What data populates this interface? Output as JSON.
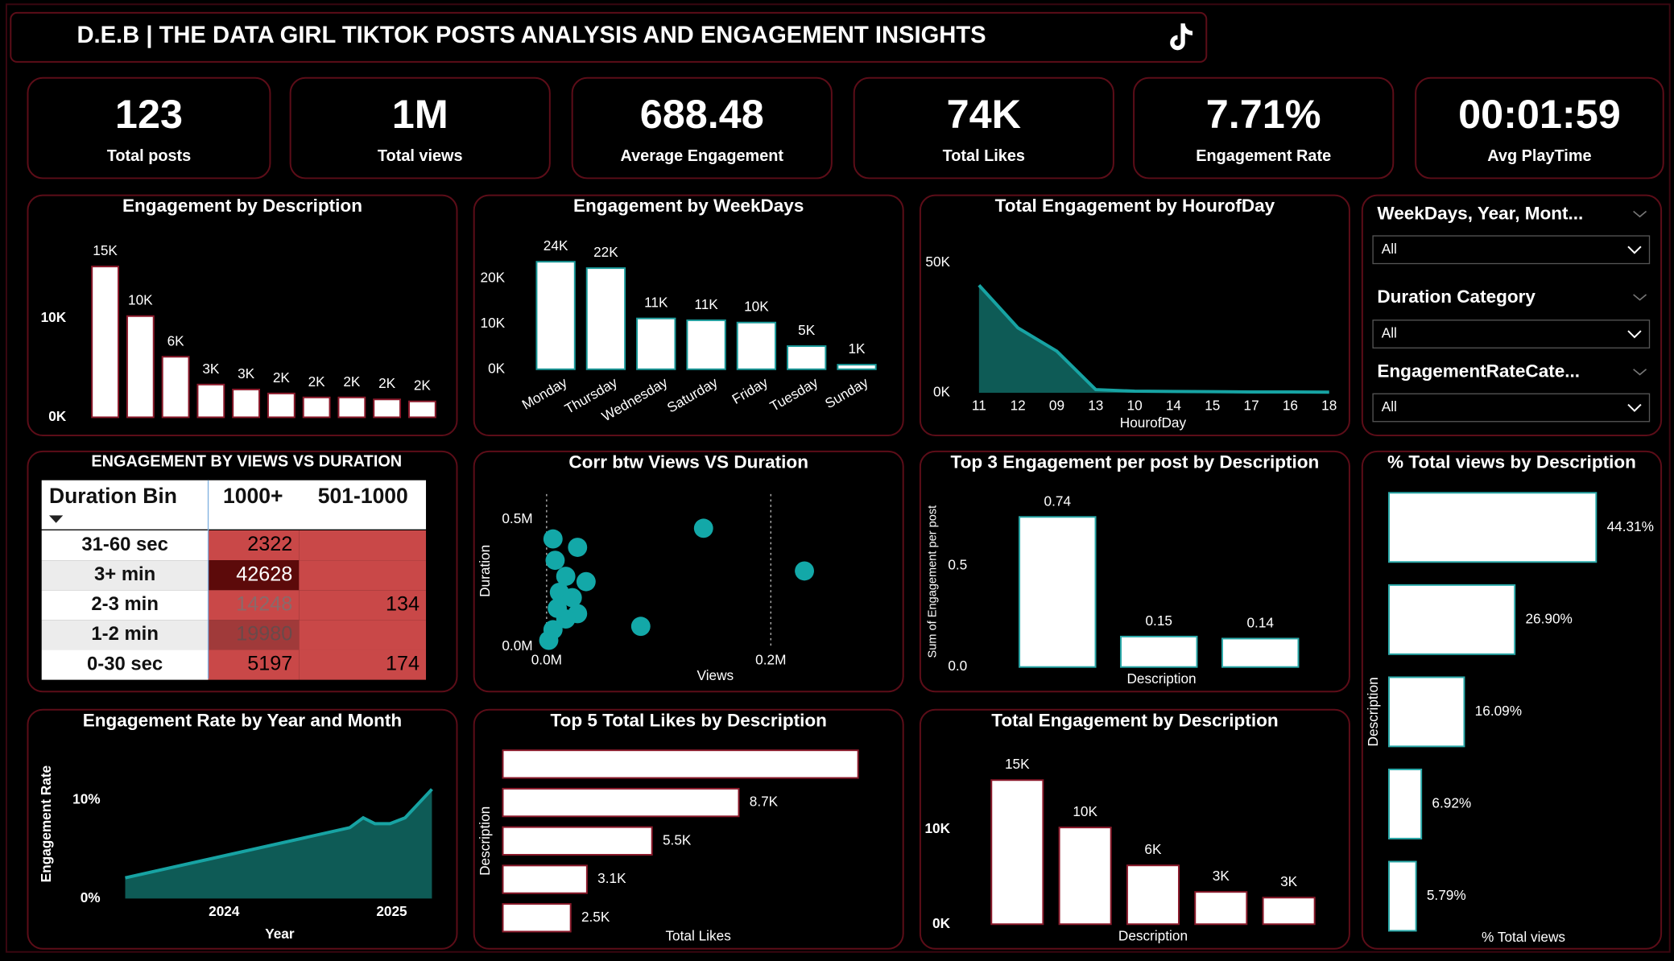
{
  "header": {
    "title": "D.E.B | THE DATA GIRL TIKTOK POSTS ANALYSIS AND ENGAGEMENT INSIGHTS"
  },
  "kpis": [
    {
      "value": "123",
      "label": "Total posts"
    },
    {
      "value": "1M",
      "label": "Total views"
    },
    {
      "value": "688.48",
      "label": "Average Engagement"
    },
    {
      "value": "74K",
      "label": "Total Likes"
    },
    {
      "value": "7.71%",
      "label": "Engagement Rate"
    },
    {
      "value": "00:01:59",
      "label": "Avg PlayTime"
    }
  ],
  "slicers": [
    {
      "label": "WeekDays, Year, Mont...",
      "selection": "All"
    },
    {
      "label": "Duration Category",
      "selection": "All"
    },
    {
      "label": "EngagementRateCate...",
      "selection": "All"
    }
  ],
  "table": {
    "title": "ENGAGEMENT BY VIEWS VS DURATION",
    "columns": [
      "Duration Bin",
      "1000+",
      "501-1000"
    ],
    "rows": [
      [
        "31-60 sec",
        2322,
        null
      ],
      [
        "3+ min",
        42628,
        null
      ],
      [
        "2-3 min",
        14248,
        134
      ],
      [
        "1-2 min",
        19980,
        null
      ],
      [
        "0-30 sec",
        5197,
        174
      ]
    ]
  },
  "chart_data": [
    {
      "type": "bar",
      "title": "Engagement by Description",
      "categories": [
        null,
        null,
        null,
        null,
        null,
        null,
        null,
        null,
        null,
        null
      ],
      "values": [
        15200,
        10200,
        6100,
        3300,
        2800,
        2400,
        2000,
        2000,
        1800,
        1600
      ],
      "value_labels": [
        "15K",
        "10K",
        "6K",
        "3K",
        "3K",
        "2K",
        "2K",
        "2K",
        "2K",
        "2K"
      ],
      "ylim": [
        0,
        17000
      ],
      "yticks": [
        {
          "value": 0,
          "label": "0K"
        },
        {
          "value": 10000,
          "label": "10K"
        }
      ],
      "color": "#ffffff",
      "edge_color": "#8b1a2b"
    },
    {
      "type": "bar",
      "title": "Engagement by WeekDays",
      "categories": [
        "Monday",
        "Thursday",
        "Wednesday",
        "Saturday",
        "Friday",
        "Tuesday",
        "Sunday"
      ],
      "values": [
        23700,
        22300,
        11200,
        10800,
        10300,
        5100,
        1000
      ],
      "value_labels": [
        "24K",
        "22K",
        "11K",
        "11K",
        "10K",
        "5K",
        "1K"
      ],
      "ylim": [
        0,
        28000
      ],
      "yticks": [
        {
          "value": 0,
          "label": "0K"
        },
        {
          "value": 10000,
          "label": "10K"
        },
        {
          "value": 20000,
          "label": "20K"
        }
      ],
      "color": "#ffffff",
      "edge_color": "#1a9a9a"
    },
    {
      "type": "area",
      "title": "Total Engagement by HourofDay",
      "x_label": "HourofDay",
      "categories": [
        "11",
        "12",
        "09",
        "13",
        "10",
        "14",
        "15",
        "17",
        "16",
        "18"
      ],
      "values": [
        41400,
        25000,
        16000,
        1200,
        600,
        500,
        400,
        300,
        300,
        200
      ],
      "ylim": [
        0,
        60000
      ],
      "yticks": [
        {
          "value": 0,
          "label": "0K"
        },
        {
          "value": 50000,
          "label": "50K"
        }
      ],
      "color": "#0e5b56",
      "line_color": "#17a3a3"
    },
    {
      "type": "scatter",
      "title": "Corr btw Views VS Duration",
      "x_label": "Views",
      "y_label": "Duration",
      "x": [
        140000,
        230000,
        84000,
        5700,
        27600,
        7600,
        35200,
        17100,
        11400,
        27600,
        17100,
        5700,
        1900,
        9500,
        22900
      ],
      "values": [
        466000,
        298000,
        80000,
        424000,
        391000,
        340000,
        256000,
        277000,
        214000,
        130000,
        109000,
        67000,
        25000,
        151000,
        193000
      ],
      "xlim": [
        -10000,
        260000
      ],
      "ylim": [
        0,
        550000
      ],
      "xticks": [
        {
          "value": 0,
          "label": "0.0M"
        },
        {
          "value": 200000,
          "label": "0.2M"
        }
      ],
      "yticks": [
        {
          "value": 0,
          "label": "0.0M"
        },
        {
          "value": 500000,
          "label": "0.5M"
        }
      ],
      "color": "#13a8a8"
    },
    {
      "type": "bar",
      "title": "Top 3 Engagement per post by Description",
      "x_label": "Description",
      "y_label": "Sum of Engagement per post",
      "categories": [
        null,
        null,
        null
      ],
      "values": [
        0.74,
        0.15,
        0.14
      ],
      "ylim": [
        0,
        0.85
      ],
      "yticks": [
        {
          "value": 0,
          "label": "0.0"
        },
        0.5
      ],
      "color": "#ffffff",
      "edge_color": "#2aa9a9"
    },
    {
      "type": "hbar",
      "title": "% Total views by Description",
      "x_label": "% Total views",
      "y_label": "Description",
      "categories": [
        null,
        null,
        null,
        null,
        null
      ],
      "values": [
        44.31,
        26.9,
        16.09,
        6.92,
        5.79
      ],
      "value_labels": [
        "44.31%",
        "26.90%",
        "16.09%",
        "6.92%",
        "5.79%"
      ],
      "color": "#ffffff",
      "edge_color": "#2aa9a9"
    },
    {
      "type": "area",
      "title": "Engagement Rate by Year and Month",
      "x_label": "Year",
      "y_label": "Engagement Rate",
      "x": [
        2023.41,
        2024.75,
        2024.83,
        2024.9,
        2024.99,
        2025.08,
        2025.24
      ],
      "values": [
        2.1,
        7.2,
        8.2,
        7.6,
        7.6,
        8.2,
        11.1
      ],
      "xlim": [
        2023.3,
        2025.3
      ],
      "xticks": [
        2024,
        2025
      ],
      "ylim": [
        0,
        13
      ],
      "yticks": [
        {
          "value": 0,
          "label": "0%"
        },
        {
          "value": 10,
          "label": "10%"
        }
      ],
      "color": "#0e5b56",
      "line_color": "#17a3a3"
    },
    {
      "type": "hbar",
      "title": "Top 5 Total Likes by Description",
      "x_label": "Total Likes",
      "y_label": "Description",
      "categories": [
        null,
        null,
        null,
        null,
        null
      ],
      "values": [
        13100,
        8700,
        5500,
        3100,
        2500
      ],
      "value_labels": [
        null,
        "8.7K",
        "5.5K",
        "3.1K",
        "2.5K"
      ],
      "color": "#ffffff",
      "edge_color": "#8b1a2b"
    },
    {
      "type": "bar",
      "title": "Total Engagement by Description",
      "x_label": "Description",
      "categories": [
        null,
        null,
        null,
        null,
        null
      ],
      "values": [
        15200,
        10200,
        6200,
        3400,
        2800
      ],
      "value_labels": [
        "15K",
        "10K",
        "6K",
        "3K",
        "3K"
      ],
      "ylim": [
        0,
        17000
      ],
      "yticks": [
        {
          "value": 0,
          "label": "0K"
        },
        {
          "value": 10000,
          "label": "10K"
        }
      ],
      "color": "#ffffff",
      "edge_color": "#8b1a2b"
    }
  ]
}
